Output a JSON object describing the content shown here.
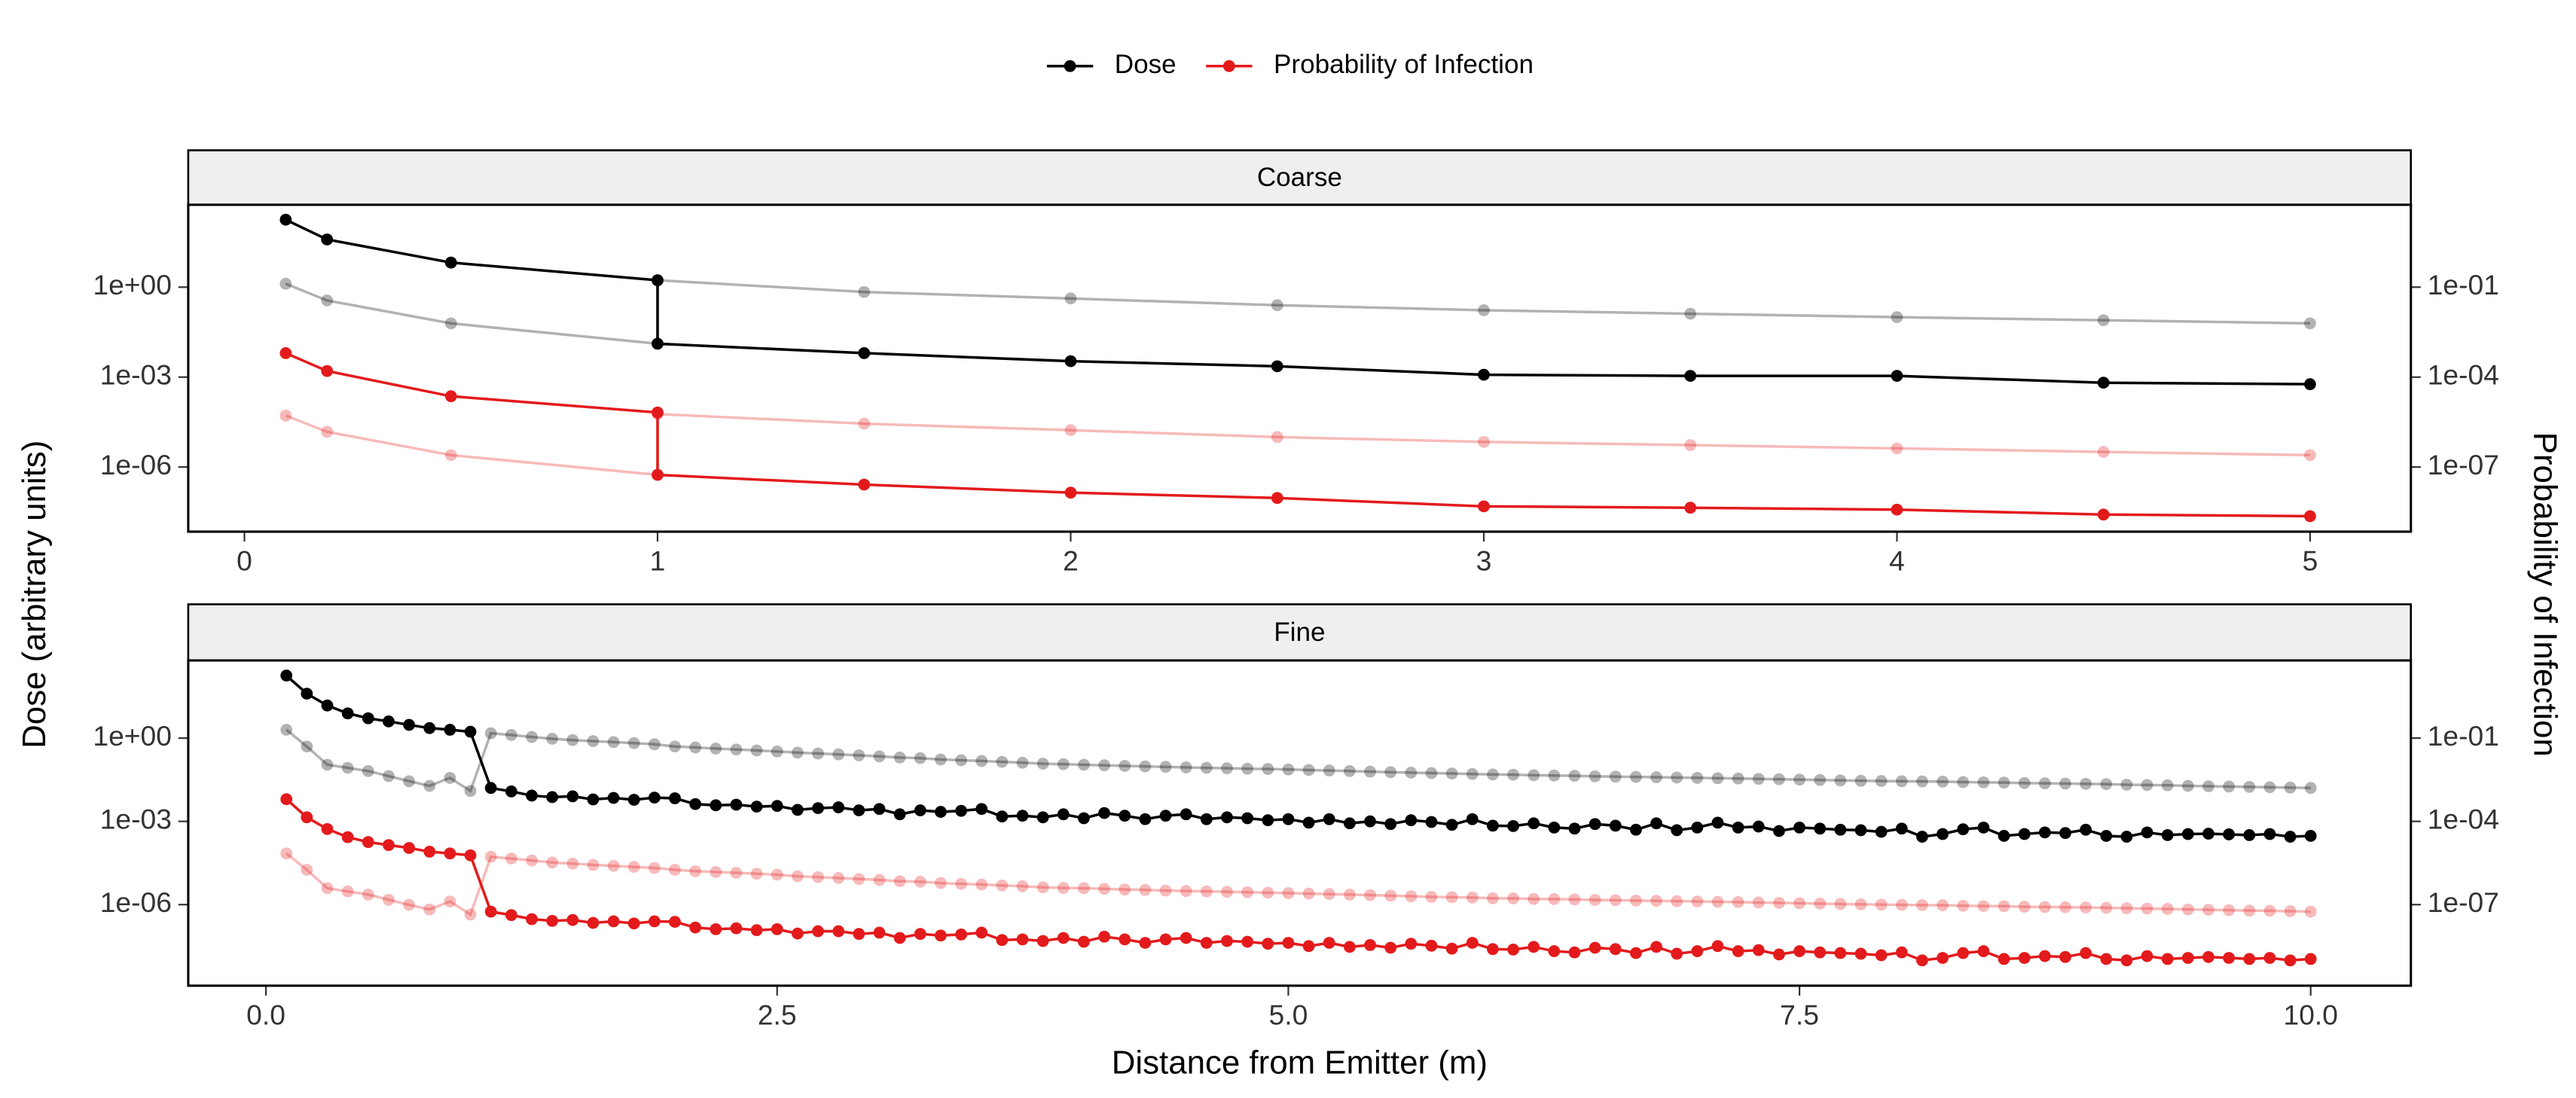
{
  "chart_data": [
    {
      "type": "line",
      "title": "Coarse",
      "ylabel": "Dose (arbitrary units)",
      "y2label": "Probability of Infection",
      "ylog": true,
      "y2log": true,
      "grid": false,
      "x": [
        0.1,
        0.2,
        0.5,
        1,
        1,
        1.5,
        2,
        2.5,
        3,
        3.5,
        4,
        4.5,
        5
      ],
      "xlim": [
        -0.136,
        5.244
      ],
      "xticks": [
        0,
        1,
        2,
        3,
        4,
        5
      ],
      "ylim": [
        7e-09,
        560
      ],
      "yticks": [
        {
          "value": 1,
          "label": "1e+00"
        },
        {
          "value": 0.001,
          "label": "1e-03"
        },
        {
          "value": 1e-06,
          "label": "1e-06"
        }
      ],
      "y2lim": [
        7e-10,
        56
      ],
      "y2ticks": [
        {
          "value": 0.1,
          "label": "1e-01"
        },
        {
          "value": 0.0001,
          "label": "1e-04"
        },
        {
          "value": 1e-07,
          "label": "1e-07"
        }
      ],
      "series": [
        {
          "color": "#000000",
          "opacity": 0.3,
          "values": [
            1.3,
            0.36,
            0.062,
            0.013,
            1.7,
            0.69,
            0.42,
            0.25,
            0.17,
            0.13,
            0.1,
            0.079,
            0.062
          ]
        },
        {
          "color": "#e31a1c",
          "opacity": 0.3,
          "axis": "y2",
          "values": [
            5.2e-06,
            1.5e-06,
            2.5e-07,
            5.5e-08,
            5.9e-06,
            2.8e-06,
            1.7e-06,
            1e-06,
            6.9e-07,
            5.4e-07,
            4.2e-07,
            3.2e-07,
            2.5e-07
          ]
        },
        {
          "name": "Dose",
          "color": "#000000",
          "values": [
            178,
            39,
            6.6,
            1.7,
            0.013,
            0.0063,
            0.0034,
            0.0023,
            0.0012,
            0.0011,
            0.0011,
            0.00065,
            0.00058
          ]
        },
        {
          "name": "Probability of Infection",
          "color": "#e31a1c",
          "axis": "y2",
          "values": [
            0.00063,
            0.00016,
            2.3e-05,
            6.6e-06,
            5.5e-08,
            2.6e-08,
            1.4e-08,
            9.3e-09,
            4.9e-09,
            4.4e-09,
            3.8e-09,
            2.6e-09,
            2.3e-09
          ]
        }
      ]
    },
    {
      "type": "line",
      "title": "Fine",
      "xlabel": "Distance from Emitter (m)",
      "ylog": true,
      "y2log": true,
      "grid": false,
      "x": [
        0.1,
        0.2,
        0.3,
        0.4,
        0.5,
        0.6,
        0.7,
        0.8,
        0.9,
        1.0,
        1.1,
        1.2,
        1.3,
        1.4,
        1.5,
        1.6,
        1.7,
        1.8,
        1.9,
        2.0,
        2.1,
        2.2,
        2.3,
        2.4,
        2.5,
        2.6,
        2.7,
        2.8,
        2.9,
        3.0,
        3.1,
        3.2,
        3.3,
        3.4,
        3.5,
        3.6,
        3.7,
        3.8,
        3.9,
        4.0,
        4.1,
        4.2,
        4.3,
        4.4,
        4.5,
        4.6,
        4.7,
        4.8,
        4.9,
        5.0,
        5.1,
        5.2,
        5.3,
        5.4,
        5.5,
        5.6,
        5.7,
        5.8,
        5.9,
        6.0,
        6.1,
        6.2,
        6.3,
        6.4,
        6.5,
        6.6,
        6.7,
        6.8,
        6.9,
        7.0,
        7.1,
        7.2,
        7.3,
        7.4,
        7.5,
        7.6,
        7.7,
        7.8,
        7.9,
        8.0,
        8.1,
        8.2,
        8.3,
        8.4,
        8.5,
        8.6,
        8.7,
        8.8,
        8.9,
        9.0,
        9.1,
        9.2,
        9.3,
        9.4,
        9.5,
        9.6,
        9.7,
        9.8,
        9.9,
        10.0
      ],
      "xlim": [
        -0.38,
        10.49
      ],
      "xticks": [
        {
          "value": 0,
          "label": "0.0"
        },
        2.5,
        {
          "value": 5,
          "label": "5.0"
        },
        7.5,
        {
          "value": 10,
          "label": "10.0"
        }
      ],
      "ylim": [
        1.2e-09,
        630
      ],
      "yticks": [
        {
          "value": 1,
          "label": "1e+00"
        },
        {
          "value": 0.001,
          "label": "1e-03"
        },
        {
          "value": 1e-06,
          "label": "1e-06"
        }
      ],
      "y2lim": [
        1.2e-10,
        63
      ],
      "y2ticks": [
        {
          "value": 0.1,
          "label": "1e-01"
        },
        {
          "value": 0.0001,
          "label": "1e-04"
        },
        {
          "value": 1e-07,
          "label": "1e-07"
        }
      ],
      "series": [
        {
          "color": "#000000",
          "opacity": 0.3,
          "values": [
            2.0,
            0.5,
            0.11,
            0.085,
            0.065,
            0.043,
            0.028,
            0.019,
            0.037,
            0.0125,
            1.5,
            1.3,
            1.1,
            0.95,
            0.85,
            0.78,
            0.72,
            0.66,
            0.6,
            0.5,
            0.46,
            0.42,
            0.39,
            0.36,
            0.33,
            0.3,
            0.28,
            0.26,
            0.24,
            0.22,
            0.2,
            0.19,
            0.17,
            0.16,
            0.15,
            0.14,
            0.13,
            0.12,
            0.115,
            0.11,
            0.105,
            0.1,
            0.096,
            0.092,
            0.088,
            0.085,
            0.082,
            0.079,
            0.077,
            0.074,
            0.071,
            0.068,
            0.065,
            0.062,
            0.059,
            0.057,
            0.055,
            0.053,
            0.051,
            0.049,
            0.048,
            0.046,
            0.045,
            0.044,
            0.042,
            0.041,
            0.04,
            0.039,
            0.038,
            0.037,
            0.036,
            0.035,
            0.034,
            0.033,
            0.032,
            0.031,
            0.03,
            0.029,
            0.0285,
            0.028,
            0.0275,
            0.027,
            0.026,
            0.0255,
            0.025,
            0.024,
            0.0235,
            0.023,
            0.0225,
            0.022,
            0.021,
            0.0205,
            0.02,
            0.019,
            0.0185,
            0.018,
            0.0175,
            0.017,
            0.0165,
            0.016
          ]
        },
        {
          "color": "#e31a1c",
          "opacity": 0.3,
          "axis": "y2",
          "values": [
            7e-06,
            1.8e-06,
            3.9e-07,
            3e-07,
            2.3e-07,
            1.5e-07,
            9.8e-08,
            6.7e-08,
            1.3e-07,
            4.4e-08,
            5.3e-06,
            4.6e-06,
            3.9e-06,
            3.3e-06,
            3e-06,
            2.7e-06,
            2.5e-06,
            2.3e-06,
            2.1e-06,
            1.8e-06,
            1.6e-06,
            1.5e-06,
            1.4e-06,
            1.3e-06,
            1.2e-06,
            1.05e-06,
            9.8e-07,
            9.1e-07,
            8.4e-07,
            7.7e-07,
            7e-07,
            6.7e-07,
            6e-07,
            5.6e-07,
            5.3e-07,
            4.9e-07,
            4.6e-07,
            4.2e-07,
            4e-07,
            3.9e-07,
            3.7e-07,
            3.5e-07,
            3.4e-07,
            3.2e-07,
            3.1e-07,
            3e-07,
            2.9e-07,
            2.8e-07,
            2.7e-07,
            2.6e-07,
            2.5e-07,
            2.4e-07,
            2.3e-07,
            2.2e-07,
            2.1e-07,
            2e-07,
            1.9e-07,
            1.85e-07,
            1.8e-07,
            1.7e-07,
            1.68e-07,
            1.6e-07,
            1.58e-07,
            1.54e-07,
            1.47e-07,
            1.44e-07,
            1.4e-07,
            1.37e-07,
            1.33e-07,
            1.3e-07,
            1.26e-07,
            1.23e-07,
            1.19e-07,
            1.16e-07,
            1.12e-07,
            1.09e-07,
            1.05e-07,
            1.02e-07,
            1e-07,
            9.8e-08,
            9.6e-08,
            9.5e-08,
            9.1e-08,
            8.9e-08,
            8.8e-08,
            8.4e-08,
            8.2e-08,
            8.1e-08,
            7.9e-08,
            7.7e-08,
            7.4e-08,
            7.2e-08,
            7e-08,
            6.7e-08,
            6.5e-08,
            6.3e-08,
            6.1e-08,
            6e-08,
            5.8e-08,
            5.6e-08
          ]
        },
        {
          "color": "#000000",
          "values": [
            180,
            40,
            15,
            7.8,
            5.2,
            4.0,
            3.0,
            2.3,
            2.0,
            1.7,
            0.016,
            0.012,
            0.0085,
            0.0075,
            0.008,
            0.0062,
            0.007,
            0.006,
            0.0072,
            0.0068,
            0.0042,
            0.0038,
            0.004,
            0.0034,
            0.0036,
            0.0026,
            0.003,
            0.0032,
            0.0025,
            0.0028,
            0.0018,
            0.0025,
            0.0022,
            0.0024,
            0.0028,
            0.0015,
            0.0016,
            0.0014,
            0.0018,
            0.0013,
            0.002,
            0.0016,
            0.0012,
            0.0016,
            0.0018,
            0.0012,
            0.0014,
            0.0013,
            0.0011,
            0.0012,
            0.0009,
            0.0012,
            0.00085,
            0.001,
            0.0008,
            0.0011,
            0.00095,
            0.00075,
            0.0012,
            0.0007,
            0.00068,
            0.00085,
            0.0006,
            0.00055,
            0.0008,
            0.0007,
            0.0005,
            0.00085,
            0.00048,
            0.0006,
            0.0009,
            0.0006,
            0.00065,
            0.00045,
            0.0006,
            0.00055,
            0.0005,
            0.00048,
            0.00042,
            0.00055,
            0.00028,
            0.00035,
            0.00052,
            0.0006,
            0.0003,
            0.00035,
            0.0004,
            0.00038,
            0.0005,
            0.0003,
            0.00028,
            0.0004,
            0.00032,
            0.00035,
            0.00036,
            0.00034,
            0.00032,
            0.00035,
            0.00028,
            0.0003
          ]
        },
        {
          "color": "#e31a1c",
          "axis": "y2",
          "values": [
            0.00063,
            0.00014,
            5.3e-05,
            2.7e-05,
            1.8e-05,
            1.4e-05,
            1.1e-05,
            8.1e-06,
            7e-06,
            6e-06,
            5.6e-08,
            4.2e-08,
            3e-08,
            2.6e-08,
            2.8e-08,
            2.2e-08,
            2.5e-08,
            2.1e-08,
            2.5e-08,
            2.4e-08,
            1.5e-08,
            1.3e-08,
            1.4e-08,
            1.2e-08,
            1.3e-08,
            9.1e-09,
            1.1e-08,
            1.1e-08,
            8.8e-09,
            9.8e-09,
            6.3e-09,
            8.8e-09,
            7.7e-09,
            8.4e-09,
            9.8e-09,
            5.3e-09,
            5.6e-09,
            4.9e-09,
            6.3e-09,
            4.6e-09,
            7e-09,
            5.6e-09,
            4.2e-09,
            5.6e-09,
            6.3e-09,
            4.2e-09,
            4.9e-09,
            4.6e-09,
            3.9e-09,
            4.2e-09,
            3.2e-09,
            4.2e-09,
            3e-09,
            3.5e-09,
            2.8e-09,
            3.9e-09,
            3.3e-09,
            2.6e-09,
            4.2e-09,
            2.5e-09,
            2.4e-09,
            3e-09,
            2.1e-09,
            1.9e-09,
            2.8e-09,
            2.5e-09,
            1.8e-09,
            3e-09,
            1.7e-09,
            2.1e-09,
            3.2e-09,
            2.1e-09,
            2.3e-09,
            1.6e-09,
            2.1e-09,
            1.9e-09,
            1.8e-09,
            1.7e-09,
            1.5e-09,
            1.9e-09,
            9.8e-10,
            1.2e-09,
            1.8e-09,
            2.1e-09,
            1.1e-09,
            1.2e-09,
            1.4e-09,
            1.3e-09,
            1.8e-09,
            1.1e-09,
            9.8e-10,
            1.4e-09,
            1.1e-09,
            1.2e-09,
            1.3e-09,
            1.2e-09,
            1.1e-09,
            1.2e-09,
            9.8e-10,
            1.1e-09
          ]
        }
      ]
    }
  ]
}
